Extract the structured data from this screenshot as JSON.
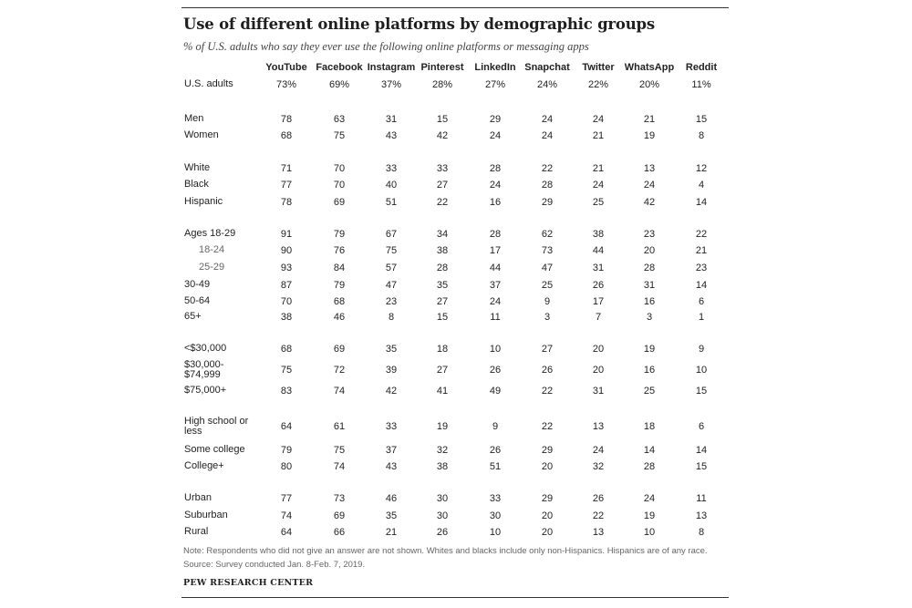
{
  "chart_data": {
    "type": "table",
    "title": "Use of different online platforms by demographic groups",
    "subtitle": "% of U.S. adults who say they ever use the following online platforms or messaging apps",
    "columns": [
      "YouTube",
      "Facebook",
      "Instagram",
      "Pinterest",
      "LinkedIn",
      "Snapchat",
      "Twitter",
      "WhatsApp",
      "Reddit"
    ],
    "rows": [
      {
        "label": "U.S. adults",
        "values": [
          "73%",
          "69%",
          "37%",
          "28%",
          "27%",
          "24%",
          "22%",
          "20%",
          "11%"
        ]
      },
      {
        "label": "Men",
        "values": [
          "78",
          "63",
          "31",
          "15",
          "29",
          "24",
          "24",
          "21",
          "15"
        ]
      },
      {
        "label": "Women",
        "values": [
          "68",
          "75",
          "43",
          "42",
          "24",
          "24",
          "21",
          "19",
          "8"
        ]
      },
      {
        "label": "White",
        "values": [
          "71",
          "70",
          "33",
          "33",
          "28",
          "22",
          "21",
          "13",
          "12"
        ]
      },
      {
        "label": "Black",
        "values": [
          "77",
          "70",
          "40",
          "27",
          "24",
          "28",
          "24",
          "24",
          "4"
        ]
      },
      {
        "label": "Hispanic",
        "values": [
          "78",
          "69",
          "51",
          "22",
          "16",
          "29",
          "25",
          "42",
          "14"
        ]
      },
      {
        "label": "Ages 18-29",
        "values": [
          "91",
          "79",
          "67",
          "34",
          "28",
          "62",
          "38",
          "23",
          "22"
        ]
      },
      {
        "label": "18-24",
        "values": [
          "90",
          "76",
          "75",
          "38",
          "17",
          "73",
          "44",
          "20",
          "21"
        ]
      },
      {
        "label": "25-29",
        "values": [
          "93",
          "84",
          "57",
          "28",
          "44",
          "47",
          "31",
          "28",
          "23"
        ]
      },
      {
        "label": "30-49",
        "values": [
          "87",
          "79",
          "47",
          "35",
          "37",
          "25",
          "26",
          "31",
          "14"
        ]
      },
      {
        "label": "50-64",
        "values": [
          "70",
          "68",
          "23",
          "27",
          "24",
          "9",
          "17",
          "16",
          "6"
        ]
      },
      {
        "label": "65+",
        "values": [
          "38",
          "46",
          "8",
          "15",
          "11",
          "3",
          "7",
          "3",
          "1"
        ]
      },
      {
        "label": "<$30,000",
        "values": [
          "68",
          "69",
          "35",
          "18",
          "10",
          "27",
          "20",
          "19",
          "9"
        ]
      },
      {
        "label": "$30,000-\n$74,999",
        "values": [
          "75",
          "72",
          "39",
          "27",
          "26",
          "26",
          "20",
          "16",
          "10"
        ]
      },
      {
        "label": "$75,000+",
        "values": [
          "83",
          "74",
          "42",
          "41",
          "49",
          "22",
          "31",
          "25",
          "15"
        ]
      },
      {
        "label": "High school or\nless",
        "values": [
          "64",
          "61",
          "33",
          "19",
          "9",
          "22",
          "13",
          "18",
          "6"
        ]
      },
      {
        "label": "Some college",
        "values": [
          "79",
          "75",
          "37",
          "32",
          "26",
          "29",
          "24",
          "14",
          "14"
        ]
      },
      {
        "label": "College+",
        "values": [
          "80",
          "74",
          "43",
          "38",
          "51",
          "20",
          "32",
          "28",
          "15"
        ]
      },
      {
        "label": "Urban",
        "values": [
          "77",
          "73",
          "46",
          "30",
          "33",
          "29",
          "26",
          "24",
          "11"
        ]
      },
      {
        "label": "Suburban",
        "values": [
          "74",
          "69",
          "35",
          "30",
          "30",
          "20",
          "22",
          "19",
          "13"
        ]
      },
      {
        "label": "Rural",
        "values": [
          "64",
          "66",
          "21",
          "26",
          "10",
          "20",
          "13",
          "10",
          "8"
        ]
      }
    ]
  },
  "footer": {
    "note": "Note: Respondents who did not give an answer are not shown. Whites and blacks include only non-Hispanics. Hispanics are of any race.",
    "source": "Source: Survey conducted Jan. 8-Feb. 7, 2019.",
    "org": "PEW RESEARCH CENTER"
  }
}
